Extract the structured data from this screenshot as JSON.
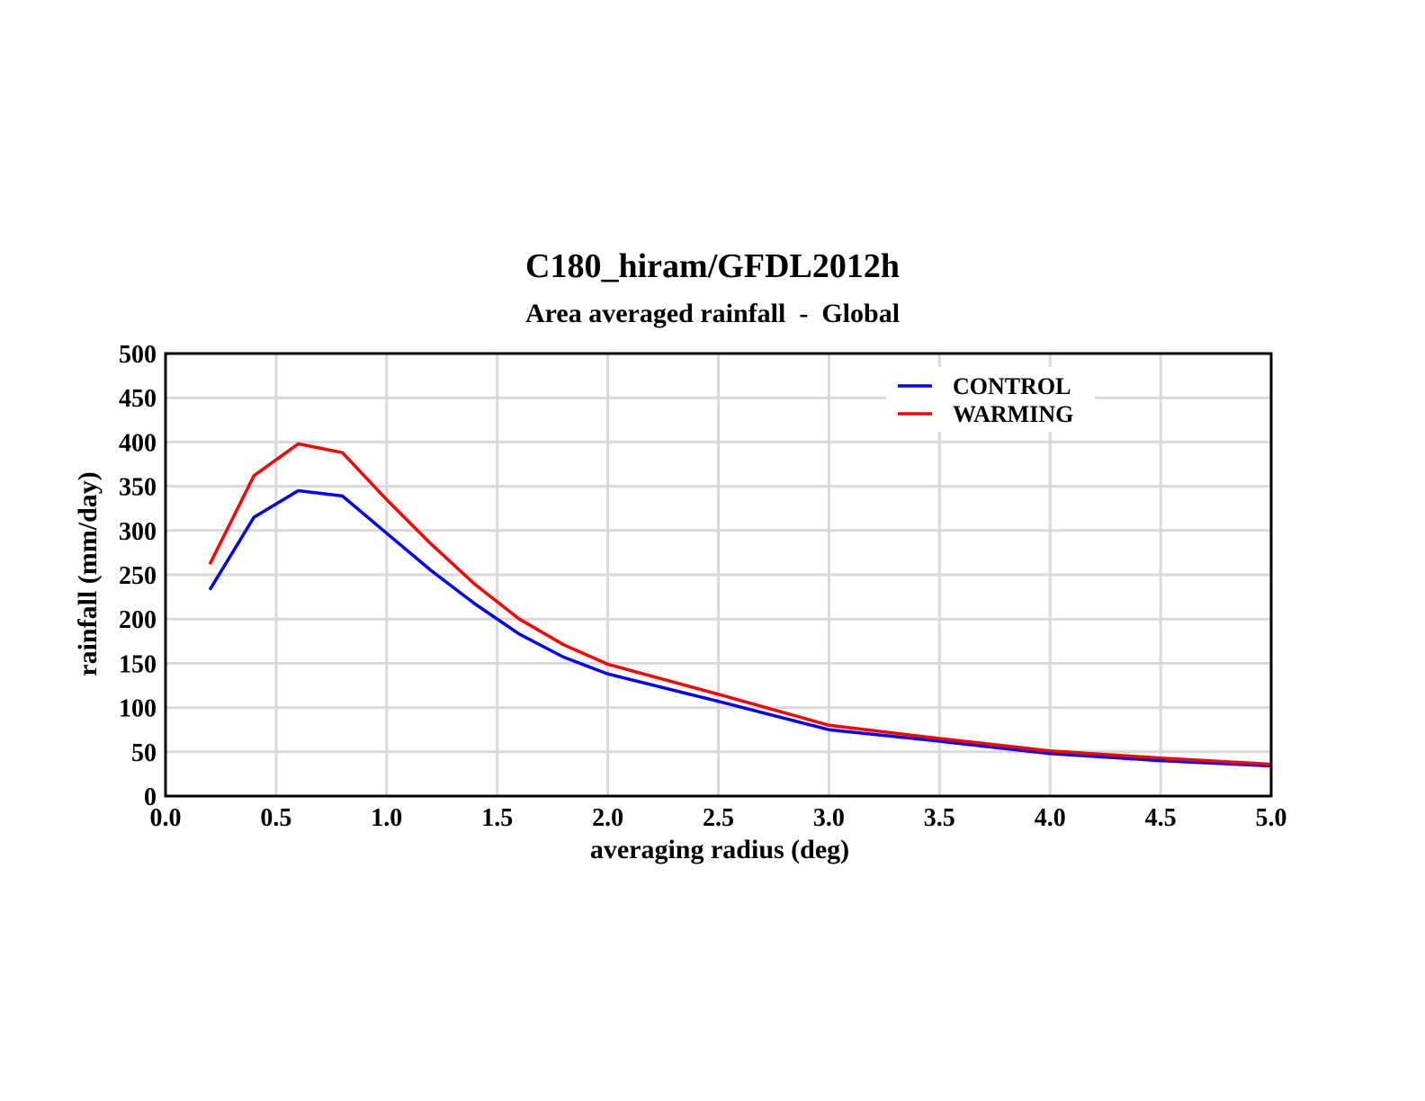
{
  "chart_data": {
    "type": "line",
    "title": "C180_hiram/GFDL2012h",
    "subtitle": "Area averaged rainfall  -  Global",
    "xlabel": "averaging radius (deg)",
    "ylabel": "rainfall (mm/day)",
    "xlim": [
      0.0,
      5.0
    ],
    "ylim": [
      0,
      500
    ],
    "xticks": [
      "0.0",
      "0.5",
      "1.0",
      "1.5",
      "2.0",
      "2.5",
      "3.0",
      "3.5",
      "4.0",
      "4.5",
      "5.0"
    ],
    "yticks": [
      "0",
      "50",
      "100",
      "150",
      "200",
      "250",
      "300",
      "350",
      "400",
      "450",
      "500"
    ],
    "grid": true,
    "legend_position": "top-right",
    "series": [
      {
        "name": "CONTROL",
        "color": "#0000ff",
        "x": [
          0.2,
          0.4,
          0.6,
          0.8,
          1.0,
          1.2,
          1.4,
          1.6,
          1.8,
          2.0,
          2.5,
          3.0,
          3.5,
          4.0,
          4.5,
          5.0
        ],
        "y": [
          233,
          315,
          345,
          339,
          297,
          255,
          217,
          183,
          157,
          138,
          107,
          75,
          62,
          48,
          40,
          34
        ]
      },
      {
        "name": "WARMING",
        "color": "#ff0000",
        "x": [
          0.2,
          0.4,
          0.6,
          0.8,
          1.0,
          1.2,
          1.4,
          1.6,
          1.8,
          2.0,
          2.5,
          3.0,
          3.5,
          4.0,
          4.5,
          5.0
        ],
        "y": [
          262,
          362,
          398,
          388,
          335,
          285,
          239,
          200,
          171,
          149,
          115,
          80,
          65,
          51,
          43,
          36
        ]
      }
    ]
  }
}
